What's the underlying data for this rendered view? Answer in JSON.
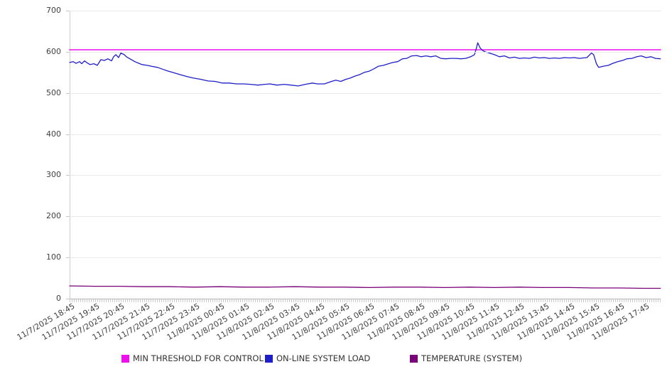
{
  "chart_data": {
    "type": "line",
    "title": "",
    "legend_position": "bottom",
    "grid": "horizontal",
    "y_axis": {
      "min": 0,
      "max": 700,
      "tick_step": 100,
      "ticks": [
        0,
        100,
        200,
        300,
        400,
        500,
        600,
        700
      ]
    },
    "x_axis": {
      "tick_interval": "1 hour",
      "label_rotation_deg": -30,
      "tick_labels": [
        "11/7/2025 18:45",
        "11/7/2025 19:45",
        "11/7/2025 20:45",
        "11/7/2025 21:45",
        "11/7/2025 22:45",
        "11/7/2025 23:45",
        "11/8/2025 00:45",
        "11/8/2025 01:45",
        "11/8/2025 02:45",
        "11/8/2025 03:45",
        "11/8/2025 04:45",
        "11/8/2025 05:45",
        "11/8/2025 06:45",
        "11/8/2025 07:45",
        "11/8/2025 08:45",
        "11/8/2025 09:45",
        "11/8/2025 10:45",
        "11/8/2025 11:45",
        "11/8/2025 12:45",
        "11/8/2025 13:45",
        "11/8/2025 14:45",
        "11/8/2025 15:45",
        "11/8/2025 16:45",
        "11/8/2025 17:45"
      ],
      "x_domain_hours": [
        0,
        23.65
      ]
    },
    "series": [
      {
        "name": "MIN THRESHOLD FOR CONTROL",
        "color": "#EE0EEE",
        "style": "constant",
        "value": 605
      },
      {
        "name": "ON-LINE SYSTEM LOAD",
        "color": "#1F1FC8",
        "style": "line",
        "points": [
          [
            0,
            574
          ],
          [
            0.14,
            576
          ],
          [
            0.26,
            572
          ],
          [
            0.4,
            576
          ],
          [
            0.48,
            571
          ],
          [
            0.6,
            578
          ],
          [
            0.68,
            574
          ],
          [
            0.82,
            569
          ],
          [
            0.97,
            571
          ],
          [
            1.11,
            567
          ],
          [
            1.25,
            581
          ],
          [
            1.39,
            579
          ],
          [
            1.53,
            583
          ],
          [
            1.68,
            578
          ],
          [
            1.76,
            588
          ],
          [
            1.85,
            593
          ],
          [
            1.96,
            586
          ],
          [
            2.05,
            597
          ],
          [
            2.19,
            593
          ],
          [
            2.27,
            588
          ],
          [
            2.41,
            583
          ],
          [
            2.61,
            576
          ],
          [
            2.81,
            571
          ],
          [
            2.9,
            569
          ],
          [
            3.1,
            567
          ],
          [
            3.27,
            565
          ],
          [
            3.52,
            562
          ],
          [
            3.75,
            557
          ],
          [
            3.95,
            553
          ],
          [
            4.12,
            550
          ],
          [
            4.4,
            545
          ],
          [
            4.69,
            540
          ],
          [
            4.97,
            536
          ],
          [
            5.26,
            533
          ],
          [
            5.54,
            529
          ],
          [
            5.82,
            528
          ],
          [
            6.11,
            524
          ],
          [
            6.39,
            524
          ],
          [
            6.68,
            522
          ],
          [
            6.96,
            522
          ],
          [
            7.24,
            521
          ],
          [
            7.53,
            519
          ],
          [
            7.81,
            521
          ],
          [
            8.01,
            522
          ],
          [
            8.3,
            519
          ],
          [
            8.58,
            521
          ],
          [
            8.86,
            519
          ],
          [
            9.15,
            517
          ],
          [
            9.43,
            521
          ],
          [
            9.72,
            524
          ],
          [
            9.91,
            522
          ],
          [
            10.2,
            522
          ],
          [
            10.48,
            528
          ],
          [
            10.65,
            531
          ],
          [
            10.85,
            528
          ],
          [
            11.05,
            533
          ],
          [
            11.22,
            536
          ],
          [
            11.42,
            541
          ],
          [
            11.62,
            545
          ],
          [
            11.79,
            550
          ],
          [
            11.99,
            553
          ],
          [
            12.19,
            559
          ],
          [
            12.36,
            565
          ],
          [
            12.56,
            567
          ],
          [
            12.76,
            571
          ],
          [
            12.93,
            574
          ],
          [
            13.13,
            576
          ],
          [
            13.32,
            583
          ],
          [
            13.49,
            584
          ],
          [
            13.69,
            590
          ],
          [
            13.89,
            591
          ],
          [
            14.06,
            588
          ],
          [
            14.26,
            590
          ],
          [
            14.45,
            588
          ],
          [
            14.65,
            590
          ],
          [
            14.85,
            584
          ],
          [
            15.05,
            583
          ],
          [
            15.25,
            584
          ],
          [
            15.45,
            584
          ],
          [
            15.65,
            583
          ],
          [
            15.85,
            584
          ],
          [
            16.05,
            588
          ],
          [
            16.2,
            593
          ],
          [
            16.28,
            609
          ],
          [
            16.33,
            622
          ],
          [
            16.43,
            609
          ],
          [
            16.53,
            603
          ],
          [
            16.63,
            600
          ],
          [
            16.8,
            597
          ],
          [
            17.0,
            593
          ],
          [
            17.2,
            588
          ],
          [
            17.4,
            590
          ],
          [
            17.6,
            585
          ],
          [
            17.8,
            587
          ],
          [
            18.0,
            584
          ],
          [
            18.2,
            585
          ],
          [
            18.4,
            584
          ],
          [
            18.6,
            587
          ],
          [
            18.8,
            585
          ],
          [
            19.0,
            586
          ],
          [
            19.2,
            584
          ],
          [
            19.4,
            585
          ],
          [
            19.6,
            584
          ],
          [
            19.8,
            586
          ],
          [
            20.0,
            585
          ],
          [
            20.2,
            586
          ],
          [
            20.4,
            584
          ],
          [
            20.55,
            585
          ],
          [
            20.7,
            586
          ],
          [
            20.88,
            597
          ],
          [
            20.97,
            593
          ],
          [
            21.08,
            571
          ],
          [
            21.17,
            562
          ],
          [
            21.36,
            565
          ],
          [
            21.56,
            567
          ],
          [
            21.73,
            572
          ],
          [
            21.93,
            576
          ],
          [
            22.13,
            579
          ],
          [
            22.3,
            583
          ],
          [
            22.5,
            584
          ],
          [
            22.7,
            588
          ],
          [
            22.87,
            590
          ],
          [
            23.07,
            586
          ],
          [
            23.27,
            588
          ],
          [
            23.44,
            584
          ],
          [
            23.64,
            583
          ]
        ]
      },
      {
        "name": "TEMPERATURE (SYSTEM)",
        "color": "#7A007A",
        "style": "line",
        "points": [
          [
            0,
            31
          ],
          [
            1,
            30
          ],
          [
            2,
            30
          ],
          [
            3,
            29
          ],
          [
            4,
            29
          ],
          [
            5,
            28
          ],
          [
            6,
            29
          ],
          [
            7,
            28
          ],
          [
            8,
            28
          ],
          [
            9,
            29
          ],
          [
            10,
            28
          ],
          [
            11,
            28
          ],
          [
            12,
            27
          ],
          [
            13,
            28
          ],
          [
            14,
            28
          ],
          [
            15,
            27
          ],
          [
            16,
            28
          ],
          [
            17,
            27
          ],
          [
            18,
            28
          ],
          [
            19,
            27
          ],
          [
            20,
            27
          ],
          [
            21,
            26
          ],
          [
            22,
            26
          ],
          [
            23,
            25
          ],
          [
            23.64,
            25
          ]
        ]
      }
    ],
    "palette": {
      "grid": "#E9E9E9",
      "axis": "#B8B8B8",
      "tick": "#C9C9C9",
      "label_text": "#404040",
      "legend_text": "#333333",
      "background": "#FFFFFF"
    }
  }
}
